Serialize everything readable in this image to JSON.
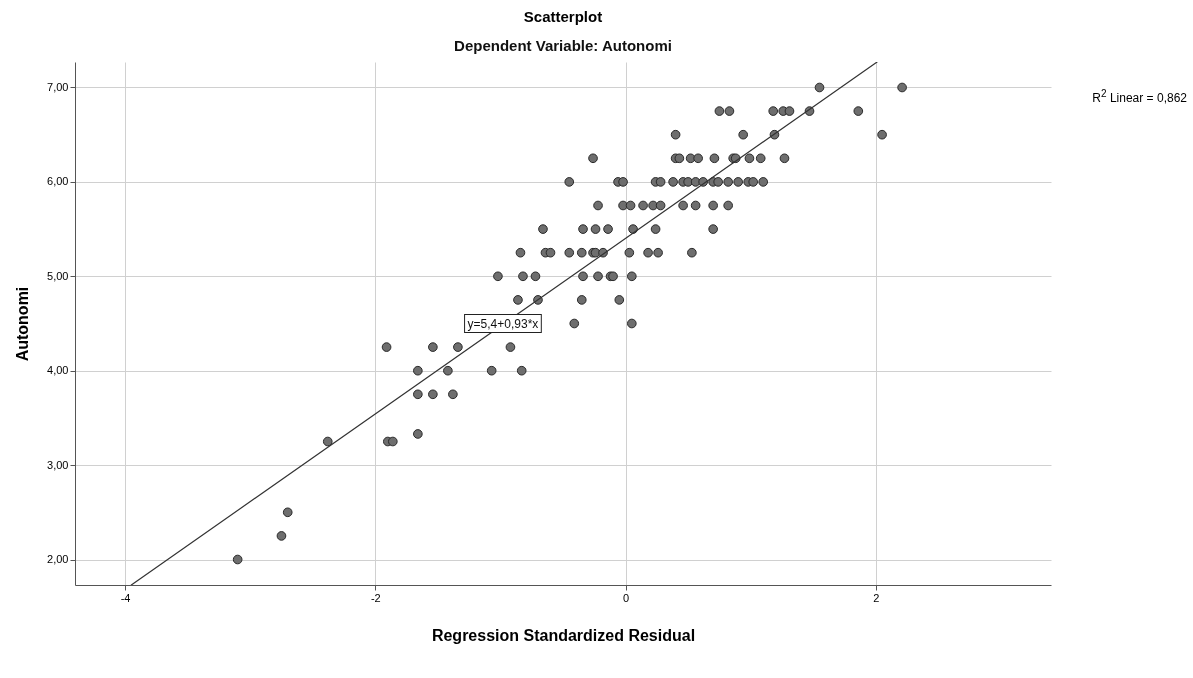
{
  "chart_data": {
    "type": "scatter",
    "title": "Scatterplot",
    "subtitle": "Dependent Variable: Autonomi",
    "xlabel": "Regression Standardized Residual",
    "ylabel": "Autonomi",
    "xlim": [
      -4.4,
      3.4
    ],
    "xticks": [
      -4,
      -2,
      0,
      2
    ],
    "ylim": [
      1.73,
      7.27
    ],
    "yticks": [
      {
        "value": 2,
        "label": "2,00"
      },
      {
        "value": 3,
        "label": "3,00"
      },
      {
        "value": 4,
        "label": "4,00"
      },
      {
        "value": 5,
        "label": "5,00"
      },
      {
        "value": 6,
        "label": "6,00"
      },
      {
        "value": 7,
        "label": "7,00"
      }
    ],
    "grid": true,
    "series": [
      {
        "color": "#6e6e6e",
        "marker": "circle",
        "x": [
          1.55,
          2.21,
          0.75,
          0.83,
          1.18,
          1.26,
          1.31,
          1.47,
          1.86,
          0.4,
          0.94,
          1.19,
          2.05,
          -0.26,
          0.4,
          0.43,
          0.52,
          0.58,
          0.71,
          0.86,
          0.88,
          0.99,
          1.08,
          1.27,
          -0.45,
          -0.06,
          -0.02,
          0.24,
          0.28,
          0.38,
          0.46,
          0.5,
          0.56,
          0.62,
          0.7,
          0.74,
          0.82,
          0.9,
          0.98,
          1.02,
          1.1,
          -0.22,
          -0.02,
          0.04,
          0.14,
          0.22,
          0.28,
          0.46,
          0.56,
          0.7,
          0.82,
          -0.66,
          -0.34,
          -0.24,
          -0.14,
          0.06,
          0.24,
          0.7,
          -0.84,
          -0.64,
          -0.6,
          -0.45,
          -0.35,
          -0.26,
          -0.24,
          -0.18,
          0.03,
          0.18,
          0.26,
          0.53,
          -1.02,
          -0.82,
          -0.72,
          -0.34,
          -0.22,
          -0.12,
          -0.1,
          0.05,
          -0.86,
          -0.7,
          -0.35,
          -0.05,
          -0.41,
          0.05,
          -1.91,
          -1.54,
          -1.34,
          -0.92,
          -1.66,
          -1.42,
          -1.07,
          -0.83,
          -1.66,
          -1.54,
          -1.38,
          -1.66,
          -2.38,
          -1.9,
          -1.86,
          -2.7,
          -2.75,
          -3.1
        ],
        "values": [
          7,
          7,
          6.75,
          6.75,
          6.75,
          6.75,
          6.75,
          6.75,
          6.75,
          6.5,
          6.5,
          6.5,
          6.5,
          6.25,
          6.25,
          6.25,
          6.25,
          6.25,
          6.25,
          6.25,
          6.25,
          6.25,
          6.25,
          6.25,
          6,
          6,
          6,
          6,
          6,
          6,
          6,
          6,
          6,
          6,
          6,
          6,
          6,
          6,
          6,
          6,
          6,
          5.75,
          5.75,
          5.75,
          5.75,
          5.75,
          5.75,
          5.75,
          5.75,
          5.75,
          5.75,
          5.5,
          5.5,
          5.5,
          5.5,
          5.5,
          5.5,
          5.5,
          5.25,
          5.25,
          5.25,
          5.25,
          5.25,
          5.25,
          5.25,
          5.25,
          5.25,
          5.25,
          5.25,
          5.25,
          5,
          5,
          5,
          5,
          5,
          5,
          5,
          5,
          4.75,
          4.75,
          4.75,
          4.75,
          4.5,
          4.5,
          4.25,
          4.25,
          4.25,
          4.25,
          4,
          4,
          4,
          4,
          3.75,
          3.75,
          3.75,
          3.33,
          3.25,
          3.25,
          3.25,
          2.5,
          2.25,
          2
        ]
      },
      {
        "type": "line",
        "color": "#333333",
        "x": [
          -3.95,
          2.01
        ],
        "values": [
          1.73,
          7.27
        ]
      }
    ],
    "annotations": [
      {
        "text": "y=5,4+0,93*x",
        "x": -0.98,
        "y": 4.5
      },
      "R$^{2}$ Linear = 0,862"
    ]
  }
}
